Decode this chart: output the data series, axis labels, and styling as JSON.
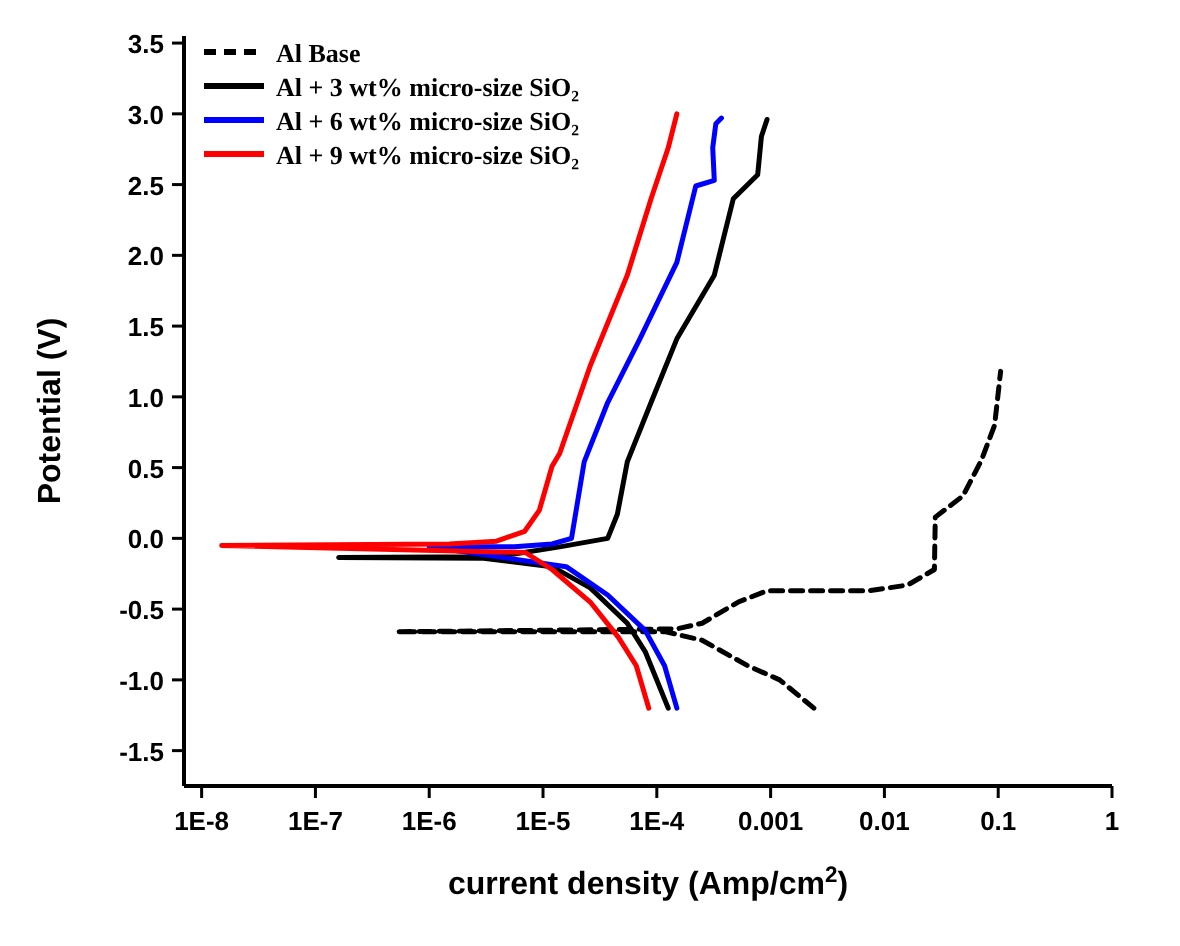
{
  "chart_data": {
    "type": "line",
    "xlabel": "current density (Amp/cm$^{2}$)",
    "ylabel": "Potential (V)",
    "log": "x",
    "grid": false,
    "legend": "top left",
    "marker": "none",
    "xlim": [
      7e-09,
      1
    ],
    "ylim": [
      -1.75,
      3.55
    ],
    "xticks": [
      {
        "value": 1e-08,
        "label": "1E-8"
      },
      {
        "value": 1e-07,
        "label": "1E-7"
      },
      {
        "value": 1e-06,
        "label": "1E-6"
      },
      {
        "value": 1e-05,
        "label": "1E-5"
      },
      {
        "value": 0.0001,
        "label": "1E-4"
      },
      0.001,
      0.01,
      0.1,
      1
    ],
    "yticks": [
      {
        "value": -1.5,
        "label": "-1.5"
      },
      {
        "value": -1,
        "label": "-1.0"
      },
      {
        "value": -0.5,
        "label": "-0.5"
      },
      {
        "value": 0,
        "label": "0.0"
      },
      {
        "value": 0.5,
        "label": "0.5"
      },
      {
        "value": 1,
        "label": "1.0"
      },
      {
        "value": 1.5,
        "label": "1.5"
      },
      {
        "value": 2,
        "label": "2.0"
      },
      {
        "value": 2.5,
        "label": "2.5"
      },
      {
        "value": 3,
        "label": "3.0"
      },
      {
        "value": 3.5,
        "label": "3.5"
      }
    ],
    "series": [
      {
        "name": "Al Base",
        "color": "#000000",
        "line_style": "dashed",
        "x": [
          0.0024,
          0.0012,
          0.00063,
          0.00025,
          0.00012,
          5.2e-07,
          0.00015,
          0.00025,
          0.00052,
          0.00093,
          0.0074,
          0.016,
          0.0275,
          0.028,
          0.049,
          0.071,
          0.093,
          0.105
        ],
        "values": [
          -1.2,
          -1.0,
          -0.9,
          -0.72,
          -0.66,
          -0.66,
          -0.64,
          -0.6,
          -0.45,
          -0.37,
          -0.37,
          -0.33,
          -0.22,
          0.15,
          0.3,
          0.55,
          0.8,
          1.18
        ]
      },
      {
        "name": "Al + 3 wt% micro-size SiO₂",
        "color": "#000000",
        "line_style": "solid",
        "x": [
          0.000126,
          7.9e-05,
          5.5e-05,
          2.6e-05,
          1.2e-05,
          3e-06,
          1.6e-07,
          3e-06,
          5.6e-06,
          1.4e-05,
          3.7e-05,
          4.5e-05,
          5.5e-05,
          8.9e-05,
          0.00015,
          0.00032,
          0.00047,
          0.00077,
          0.00083,
          0.00093
        ],
        "values": [
          -1.2,
          -0.8,
          -0.6,
          -0.35,
          -0.2,
          -0.14,
          -0.135,
          -0.13,
          -0.11,
          -0.06,
          0.0,
          0.17,
          0.54,
          0.96,
          1.41,
          1.86,
          2.4,
          2.57,
          2.84,
          2.96
        ]
      },
      {
        "name": "Al + 6 wt% micro-size SiO₂",
        "color": "#0000ff",
        "line_style": "solid",
        "x": [
          0.00015,
          0.000117,
          7.9e-05,
          3.7e-05,
          1.6e-05,
          1e-06,
          5.6e-06,
          1.2e-05,
          1.78e-05,
          2.3e-05,
          3.7e-05,
          7.1e-05,
          0.00015,
          0.00022,
          0.00032,
          0.00031,
          0.00033,
          0.00037
        ],
        "values": [
          -1.2,
          -0.9,
          -0.65,
          -0.4,
          -0.2,
          -0.06,
          -0.06,
          -0.04,
          0.0,
          0.54,
          0.96,
          1.41,
          1.95,
          2.49,
          2.53,
          2.76,
          2.93,
          2.97
        ]
      },
      {
        "name": "Al + 9 wt% micro-size SiO₂",
        "color": "#ff0000",
        "line_style": "solid",
        "x": [
          8.5e-05,
          6.6e-05,
          4.6e-05,
          2.6e-05,
          1.2e-05,
          7e-06,
          1.5e-08,
          1.5e-06,
          3.9e-06,
          6.9e-06,
          9.3e-06,
          1.2e-05,
          1.4e-05,
          2.6e-05,
          5.5e-05,
          8.9e-05,
          0.000126,
          0.00015
        ],
        "values": [
          -1.2,
          -0.9,
          -0.7,
          -0.45,
          -0.22,
          -0.1,
          -0.05,
          -0.04,
          -0.02,
          0.05,
          0.2,
          0.51,
          0.6,
          1.22,
          1.86,
          2.4,
          2.76,
          3.0
        ]
      }
    ]
  }
}
